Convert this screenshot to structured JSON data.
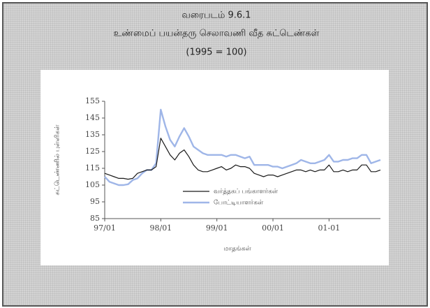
{
  "chart_data": {
    "type": "line",
    "title": "வரைபடம் 9.6.1",
    "subtitle": "உண்மைப் பயன்தரு செலாவணி வீத சுட்டெண்கள்",
    "note": "(1995 = 100)",
    "x_label": "மாதங்கள்",
    "y_label": "சுட்டெண்ணில் புள்ளிகள்",
    "categories": [
      "97/01",
      null,
      null,
      null,
      null,
      null,
      null,
      null,
      null,
      null,
      null,
      null,
      "98/01",
      null,
      null,
      null,
      null,
      null,
      null,
      null,
      null,
      null,
      null,
      null,
      "99/01",
      null,
      null,
      null,
      null,
      null,
      null,
      null,
      null,
      null,
      null,
      null,
      "00/01",
      null,
      null,
      null,
      null,
      null,
      null,
      null,
      null,
      null,
      null,
      null,
      "01-01",
      null,
      null,
      null,
      null,
      null,
      null,
      null,
      null,
      null,
      null,
      null
    ],
    "ylim": [
      85,
      155
    ],
    "yticks": [
      85,
      95,
      105,
      115,
      125,
      135,
      145,
      155
    ],
    "series": [
      {
        "name": "வர்த்தகப் பங்காளர்கள்",
        "color": "#1a1a1a",
        "values": [
          112,
          111,
          110,
          109,
          109,
          108.5,
          109,
          112,
          113,
          114,
          114,
          116,
          133,
          128,
          123,
          120,
          124,
          126,
          122,
          117,
          114,
          113,
          113,
          114,
          115,
          116,
          114,
          115,
          117,
          116,
          116,
          115,
          112,
          111,
          110,
          111,
          111,
          110,
          111,
          112,
          113,
          114,
          114,
          113,
          114,
          113,
          114,
          114,
          117,
          113,
          113,
          114,
          113,
          114,
          114,
          117,
          117,
          113,
          113,
          114
        ]
      },
      {
        "name": "போட்டியாளர்கள்",
        "color": "#9fb6e8",
        "values": [
          110,
          107,
          106,
          105,
          105,
          105.5,
          108,
          109,
          112,
          114,
          114,
          118,
          150,
          140,
          132,
          128,
          134,
          139,
          134,
          128,
          126,
          124,
          123,
          123,
          123,
          123,
          122,
          123,
          123,
          122,
          121,
          122,
          117,
          117,
          117,
          117,
          116,
          116,
          115,
          116,
          117,
          118,
          120,
          119,
          118,
          118,
          119,
          120,
          123,
          119,
          119,
          120,
          120,
          121,
          121,
          123,
          123,
          118,
          119,
          120
        ]
      }
    ]
  }
}
